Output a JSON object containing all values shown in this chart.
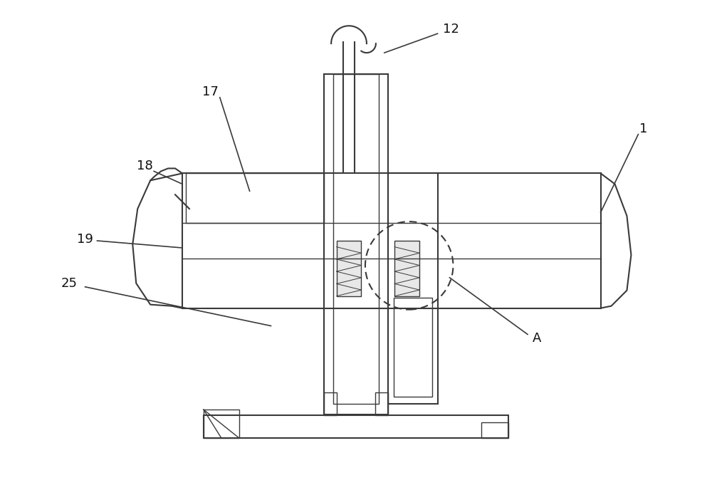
{
  "bg_color": "#ffffff",
  "line_color": "#3a3a3a",
  "lw_main": 1.5,
  "lw_thin": 1.0,
  "fig_width": 10.0,
  "fig_height": 6.88
}
